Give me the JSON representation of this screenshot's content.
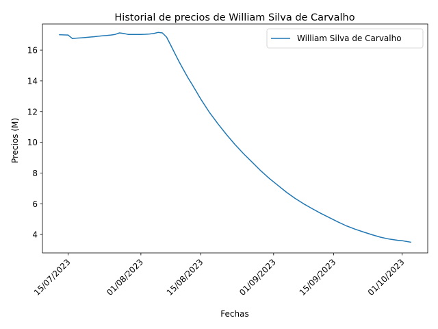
{
  "chart_data": {
    "type": "line",
    "title": "Historial de precios de William Silva de Carvalho",
    "xlabel": "Fechas",
    "ylabel": "Precios (M)",
    "x_axis_type": "date",
    "x_tick_labels": [
      "15/07/2023",
      "01/08/2023",
      "15/08/2023",
      "01/09/2023",
      "15/09/2023",
      "01/10/2023"
    ],
    "x_tick_dates": [
      "2023-07-15",
      "2023-08-01",
      "2023-08-15",
      "2023-09-01",
      "2023-09-15",
      "2023-10-01"
    ],
    "xlim": [
      "2023-07-09",
      "2023-10-07"
    ],
    "y_ticks": [
      4,
      6,
      8,
      10,
      12,
      14,
      16
    ],
    "ylim": [
      2.8,
      17.7
    ],
    "grid": false,
    "legend_position": "top-right",
    "series": [
      {
        "name": "William Silva de Carvalho",
        "color": "#1f77b4",
        "x": [
          "2023-07-13",
          "2023-07-15",
          "2023-07-16",
          "2023-07-17",
          "2023-07-18",
          "2023-07-19",
          "2023-07-20",
          "2023-07-21",
          "2023-07-22",
          "2023-07-23",
          "2023-07-24",
          "2023-07-25",
          "2023-07-26",
          "2023-07-27",
          "2023-07-28",
          "2023-07-29",
          "2023-07-30",
          "2023-07-31",
          "2023-08-01",
          "2023-08-02",
          "2023-08-03",
          "2023-08-04",
          "2023-08-05",
          "2023-08-06",
          "2023-08-07",
          "2023-08-08",
          "2023-08-09",
          "2023-08-10",
          "2023-08-11",
          "2023-08-12",
          "2023-08-13",
          "2023-08-15",
          "2023-08-17",
          "2023-08-19",
          "2023-08-21",
          "2023-08-23",
          "2023-08-25",
          "2023-08-27",
          "2023-08-29",
          "2023-08-31",
          "2023-09-02",
          "2023-09-04",
          "2023-09-06",
          "2023-09-08",
          "2023-09-10",
          "2023-09-12",
          "2023-09-14",
          "2023-09-16",
          "2023-09-18",
          "2023-09-20",
          "2023-09-22",
          "2023-09-24",
          "2023-09-26",
          "2023-09-28",
          "2023-09-30",
          "2023-10-01",
          "2023-10-02",
          "2023-10-03"
        ],
        "values": [
          17.0,
          16.98,
          16.75,
          16.78,
          16.8,
          16.82,
          16.85,
          16.87,
          16.9,
          16.93,
          16.95,
          16.98,
          17.02,
          17.12,
          17.08,
          17.02,
          17.02,
          17.02,
          17.02,
          17.03,
          17.05,
          17.08,
          17.15,
          17.12,
          16.85,
          16.3,
          15.75,
          15.2,
          14.7,
          14.2,
          13.75,
          12.8,
          11.95,
          11.2,
          10.5,
          9.85,
          9.25,
          8.7,
          8.15,
          7.65,
          7.2,
          6.75,
          6.35,
          6.0,
          5.68,
          5.38,
          5.1,
          4.82,
          4.56,
          4.35,
          4.16,
          3.98,
          3.82,
          3.7,
          3.62,
          3.6,
          3.55,
          3.5
        ]
      }
    ]
  }
}
